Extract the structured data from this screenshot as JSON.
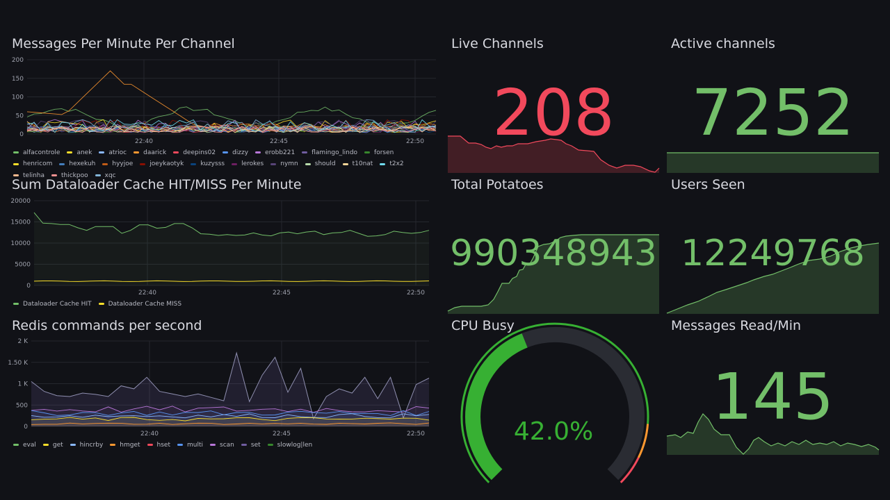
{
  "colors": {
    "background": "#111217",
    "grid": "#25272e",
    "red": "#f2495c",
    "green": "#73bf69",
    "gauge_green": "#37b033",
    "gauge_track": "#2a2c33",
    "gauge_orange": "#ff9830"
  },
  "messages_panel": {
    "title": "Messages Per Minute Per Channel",
    "y_ticks": [
      "200",
      "150",
      "100",
      "50",
      "0"
    ],
    "x_ticks": [
      "22:40",
      "22:45",
      "22:50"
    ],
    "legend": [
      {
        "name": "alfacontrole",
        "color": "#73bf69"
      },
      {
        "name": "anek",
        "color": "#fade2a"
      },
      {
        "name": "atrioc",
        "color": "#8ab8ff"
      },
      {
        "name": "daarick",
        "color": "#ff9830"
      },
      {
        "name": "deepins02",
        "color": "#f2495c"
      },
      {
        "name": "dizzy",
        "color": "#5794f2"
      },
      {
        "name": "erobb221",
        "color": "#b877d9"
      },
      {
        "name": "flamingo_lindo",
        "color": "#705da0"
      },
      {
        "name": "forsen",
        "color": "#37872d"
      },
      {
        "name": "henricom",
        "color": "#fade2a"
      },
      {
        "name": "hexekuh",
        "color": "#447ebc"
      },
      {
        "name": "hyyjoe",
        "color": "#c15c17"
      },
      {
        "name": "joeykaotyk",
        "color": "#890f02"
      },
      {
        "name": "kuzysss",
        "color": "#0a437c"
      },
      {
        "name": "lerokes",
        "color": "#6d1f62"
      },
      {
        "name": "nymn",
        "color": "#584477"
      },
      {
        "name": "should",
        "color": "#b7dbab"
      },
      {
        "name": "t10nat",
        "color": "#f4d598"
      },
      {
        "name": "t2x2",
        "color": "#70dbed"
      },
      {
        "name": "telinha",
        "color": "#f9ba8f"
      },
      {
        "name": "thickpoo",
        "color": "#f29191"
      },
      {
        "name": "xqc",
        "color": "#82b5d8"
      }
    ]
  },
  "dataloader_panel": {
    "title": "Sum Dataloader Cache HIT/MISS Per Minute",
    "y_ticks": [
      "20000",
      "15000",
      "10000",
      "5000",
      "0"
    ],
    "x_ticks": [
      "22:40",
      "22:45",
      "22:50"
    ],
    "legend": [
      {
        "name": "Dataloader Cache HIT",
        "color": "#73bf69"
      },
      {
        "name": "Dataloader Cache MISS",
        "color": "#fade2a"
      }
    ]
  },
  "redis_panel": {
    "title": "Redis commands per second",
    "y_ticks": [
      "2 K",
      "1.50 K",
      "1 K",
      "500",
      "0"
    ],
    "x_ticks": [
      "22:40",
      "22:45",
      "22:50"
    ],
    "legend": [
      {
        "name": "eval",
        "color": "#73bf69"
      },
      {
        "name": "get",
        "color": "#fade2a"
      },
      {
        "name": "hincrby",
        "color": "#8ab8ff"
      },
      {
        "name": "hmget",
        "color": "#ff9830"
      },
      {
        "name": "hset",
        "color": "#f2495c"
      },
      {
        "name": "multi",
        "color": "#5794f2"
      },
      {
        "name": "scan",
        "color": "#b877d9"
      },
      {
        "name": "set",
        "color": "#705da0"
      },
      {
        "name": "slowlog|len",
        "color": "#37872d"
      }
    ]
  },
  "live_channels": {
    "title": "Live Channels",
    "value": "208"
  },
  "active_channels": {
    "title": "Active channels",
    "value": "7252"
  },
  "total_potatoes": {
    "title": "Total Potatoes",
    "value": "990348943"
  },
  "users_seen": {
    "title": "Users Seen",
    "value": "12249768"
  },
  "cpu_busy": {
    "title": "CPU Busy",
    "value": "42.0%",
    "percent": 42.0
  },
  "messages_read": {
    "title": "Messages Read/Min",
    "value": "145"
  }
}
